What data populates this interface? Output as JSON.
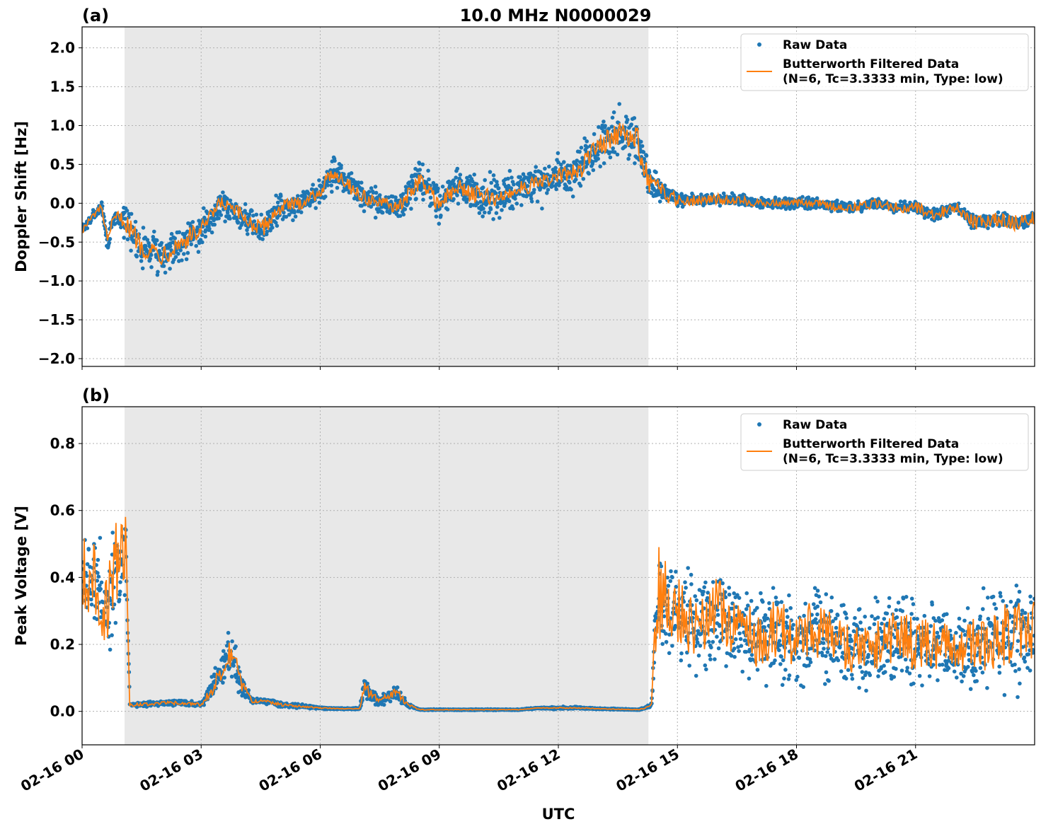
{
  "figure": {
    "title": "10.0 MHz N0000029",
    "xlabel": "UTC",
    "x_tick_labels": [
      "02-16 00",
      "02-16 03",
      "02-16 06",
      "02-16 09",
      "02-16 12",
      "02-16 15",
      "02-16 18",
      "02-16 21"
    ]
  },
  "colors": {
    "raw": "#1f77b4",
    "filtered": "#ff7f0e",
    "shade": "#e8e8e8"
  },
  "chart_data": [
    {
      "type": "scatter",
      "panel": "(a)",
      "title": "10.0 MHz N0000029",
      "xlabel": "",
      "ylabel": "Doppler Shift [Hz]",
      "xlim_hours": [
        0,
        24
      ],
      "ylim": [
        -2.1,
        2.27
      ],
      "yticks": [
        -2.0,
        -1.5,
        -1.0,
        -0.5,
        0.0,
        0.5,
        1.0,
        1.5,
        2.0
      ],
      "ytick_labels": [
        "−2.0",
        "−1.5",
        "−1.0",
        "−0.5",
        "0.0",
        "0.5",
        "1.0",
        "1.5",
        "2.0"
      ],
      "grid": true,
      "legend_placement": "upper right",
      "shaded_span_hours": [
        1.07,
        14.27
      ],
      "series": [
        {
          "name": "Raw Data",
          "kind": "points",
          "x_hours": [
            0,
            0.3,
            0.5,
            0.65,
            0.75,
            0.9,
            1.1,
            1.5,
            2.0,
            2.5,
            3.0,
            3.5,
            4.0,
            4.5,
            5.0,
            5.5,
            6.0,
            6.3,
            6.5,
            7.0,
            7.5,
            8.0,
            8.5,
            9.0,
            9.5,
            10.0,
            10.5,
            11.0,
            11.5,
            12.0,
            12.5,
            13.0,
            13.5,
            14.0,
            14.3,
            14.6,
            15.0,
            15.5,
            16.0,
            16.5,
            17.0,
            17.5,
            18.0,
            18.5,
            19.0,
            19.5,
            20.0,
            20.5,
            21.0,
            21.5,
            22.0,
            22.5,
            23.0,
            23.5,
            24.0
          ],
          "center": [
            -0.35,
            -0.15,
            -0.05,
            -0.55,
            -0.25,
            -0.15,
            -0.25,
            -0.55,
            -0.65,
            -0.5,
            -0.35,
            0.0,
            -0.15,
            -0.35,
            -0.05,
            0.0,
            0.15,
            0.4,
            0.35,
            0.1,
            0.0,
            -0.05,
            0.3,
            0.0,
            0.2,
            0.1,
            0.05,
            0.2,
            0.25,
            0.35,
            0.4,
            0.75,
            0.9,
            0.8,
            0.25,
            0.15,
            0.05,
            0.05,
            0.05,
            0.05,
            0.0,
            0.0,
            0.0,
            0.0,
            -0.05,
            -0.05,
            0.0,
            -0.05,
            -0.05,
            -0.15,
            -0.05,
            -0.25,
            -0.2,
            -0.25,
            -0.2
          ],
          "spread": [
            0.1,
            0.1,
            0.1,
            0.25,
            0.1,
            0.15,
            0.3,
            0.35,
            0.35,
            0.35,
            0.3,
            0.25,
            0.25,
            0.3,
            0.25,
            0.2,
            0.2,
            0.3,
            0.3,
            0.3,
            0.25,
            0.25,
            0.35,
            0.35,
            0.35,
            0.4,
            0.35,
            0.35,
            0.35,
            0.35,
            0.35,
            0.45,
            0.45,
            0.45,
            0.35,
            0.15,
            0.12,
            0.1,
            0.1,
            0.1,
            0.1,
            0.1,
            0.1,
            0.1,
            0.1,
            0.1,
            0.1,
            0.1,
            0.1,
            0.12,
            0.1,
            0.15,
            0.12,
            0.12,
            0.1
          ]
        },
        {
          "name": "Butterworth Filtered Data\n(N=6, Tc=3.3333 min, Type: low)",
          "legend_lines": [
            "Butterworth Filtered Data",
            "(N=6, Tc=3.3333 min, Type: low)"
          ],
          "kind": "line",
          "x_hours": [
            0,
            0.3,
            0.5,
            0.65,
            0.75,
            0.9,
            1.1,
            1.5,
            2.0,
            2.5,
            3.0,
            3.5,
            4.0,
            4.5,
            5.0,
            5.5,
            6.0,
            6.3,
            6.5,
            7.0,
            7.5,
            8.0,
            8.5,
            9.0,
            9.5,
            10.0,
            10.5,
            11.0,
            11.5,
            12.0,
            12.5,
            13.0,
            13.5,
            14.0,
            14.3,
            14.6,
            15.0,
            15.5,
            16.0,
            16.5,
            17.0,
            17.5,
            18.0,
            18.5,
            19.0,
            19.5,
            20.0,
            20.5,
            21.0,
            21.5,
            22.0,
            22.5,
            23.0,
            23.5,
            24.0
          ],
          "y": [
            -0.35,
            -0.15,
            -0.05,
            -0.55,
            -0.25,
            -0.15,
            -0.25,
            -0.55,
            -0.65,
            -0.5,
            -0.35,
            0.0,
            -0.15,
            -0.35,
            -0.05,
            0.0,
            0.15,
            0.4,
            0.35,
            0.1,
            0.0,
            -0.05,
            0.3,
            0.0,
            0.2,
            0.1,
            0.05,
            0.2,
            0.25,
            0.35,
            0.4,
            0.75,
            0.9,
            0.8,
            0.25,
            0.15,
            0.05,
            0.05,
            0.05,
            0.05,
            0.0,
            0.0,
            0.0,
            0.0,
            -0.05,
            -0.05,
            0.0,
            -0.05,
            -0.05,
            -0.15,
            -0.05,
            -0.25,
            -0.2,
            -0.25,
            -0.2
          ],
          "wiggle": [
            0.05,
            0.05,
            0.05,
            0.1,
            0.05,
            0.05,
            0.12,
            0.15,
            0.15,
            0.15,
            0.12,
            0.1,
            0.1,
            0.12,
            0.1,
            0.08,
            0.08,
            0.1,
            0.1,
            0.1,
            0.08,
            0.08,
            0.12,
            0.12,
            0.12,
            0.12,
            0.1,
            0.1,
            0.1,
            0.1,
            0.12,
            0.15,
            0.15,
            0.18,
            0.15,
            0.12,
            0.1,
            0.08,
            0.07,
            0.06,
            0.05,
            0.05,
            0.05,
            0.05,
            0.06,
            0.06,
            0.06,
            0.07,
            0.07,
            0.08,
            0.07,
            0.1,
            0.1,
            0.1,
            0.1
          ]
        }
      ]
    },
    {
      "type": "scatter",
      "panel": "(b)",
      "title": "",
      "xlabel": "UTC",
      "ylabel": "Peak Voltage [V]",
      "xlim_hours": [
        0,
        24
      ],
      "ylim": [
        -0.1,
        0.91
      ],
      "yticks": [
        0.0,
        0.2,
        0.4,
        0.6,
        0.8
      ],
      "ytick_labels": [
        "0.0",
        "0.2",
        "0.4",
        "0.6",
        "0.8"
      ],
      "grid": true,
      "legend_placement": "upper right",
      "shaded_span_hours": [
        1.07,
        14.27
      ],
      "series": [
        {
          "name": "Raw Data",
          "kind": "points",
          "x_hours": [
            0,
            0.3,
            0.6,
            0.9,
            1.1,
            1.2,
            1.5,
            2.0,
            2.5,
            3.0,
            3.3,
            3.6,
            3.8,
            4.0,
            4.3,
            4.6,
            5.0,
            5.5,
            6.0,
            6.5,
            7.0,
            7.1,
            7.5,
            7.9,
            8.2,
            8.5,
            9.0,
            10.0,
            11.0,
            11.5,
            12.0,
            12.5,
            13.0,
            14.0,
            14.2,
            14.35,
            14.5,
            15.0,
            15.5,
            16.0,
            16.5,
            17.0,
            17.5,
            18.0,
            18.5,
            19.0,
            19.5,
            20.0,
            20.5,
            21.0,
            21.5,
            22.0,
            22.5,
            23.0,
            23.5,
            24.0
          ],
          "center": [
            0.4,
            0.4,
            0.3,
            0.45,
            0.5,
            0.02,
            0.02,
            0.025,
            0.025,
            0.02,
            0.07,
            0.15,
            0.18,
            0.08,
            0.03,
            0.03,
            0.02,
            0.015,
            0.01,
            0.008,
            0.008,
            0.07,
            0.03,
            0.06,
            0.02,
            0.005,
            0.005,
            0.005,
            0.005,
            0.01,
            0.01,
            0.01,
            0.008,
            0.005,
            0.01,
            0.02,
            0.35,
            0.3,
            0.25,
            0.3,
            0.25,
            0.22,
            0.25,
            0.2,
            0.25,
            0.22,
            0.18,
            0.2,
            0.22,
            0.2,
            0.2,
            0.18,
            0.2,
            0.22,
            0.22,
            0.25
          ],
          "spread": [
            0.2,
            0.2,
            0.2,
            0.25,
            0.2,
            0.01,
            0.01,
            0.01,
            0.015,
            0.01,
            0.05,
            0.1,
            0.1,
            0.05,
            0.01,
            0.01,
            0.01,
            0.008,
            0.005,
            0.003,
            0.003,
            0.04,
            0.02,
            0.04,
            0.01,
            0.002,
            0.002,
            0.002,
            0.002,
            0.003,
            0.005,
            0.005,
            0.003,
            0.002,
            0.005,
            0.01,
            0.25,
            0.2,
            0.2,
            0.2,
            0.2,
            0.18,
            0.2,
            0.18,
            0.2,
            0.18,
            0.15,
            0.18,
            0.18,
            0.17,
            0.17,
            0.15,
            0.17,
            0.2,
            0.2,
            0.2
          ]
        },
        {
          "name": "Butterworth Filtered Data\n(N=6, Tc=3.3333 min, Type: low)",
          "legend_lines": [
            "Butterworth Filtered Data",
            "(N=6, Tc=3.3333 min, Type: low)"
          ],
          "kind": "line",
          "x_hours": [
            0,
            0.3,
            0.6,
            0.9,
            1.1,
            1.2,
            1.5,
            2.0,
            2.5,
            3.0,
            3.3,
            3.6,
            3.8,
            4.0,
            4.3,
            4.6,
            5.0,
            5.5,
            6.0,
            6.5,
            7.0,
            7.1,
            7.5,
            7.9,
            8.2,
            8.5,
            9.0,
            10.0,
            11.0,
            11.5,
            12.0,
            12.5,
            13.0,
            14.0,
            14.2,
            14.35,
            14.5,
            15.0,
            15.5,
            16.0,
            16.5,
            17.0,
            17.5,
            18.0,
            18.5,
            19.0,
            19.5,
            20.0,
            20.5,
            21.0,
            21.5,
            22.0,
            22.5,
            23.0,
            23.5,
            24.0
          ],
          "y": [
            0.4,
            0.4,
            0.3,
            0.45,
            0.5,
            0.02,
            0.02,
            0.025,
            0.025,
            0.02,
            0.07,
            0.15,
            0.18,
            0.08,
            0.03,
            0.03,
            0.02,
            0.015,
            0.01,
            0.008,
            0.008,
            0.07,
            0.03,
            0.06,
            0.02,
            0.005,
            0.005,
            0.005,
            0.005,
            0.01,
            0.01,
            0.01,
            0.008,
            0.005,
            0.01,
            0.02,
            0.35,
            0.3,
            0.25,
            0.3,
            0.25,
            0.22,
            0.25,
            0.2,
            0.25,
            0.22,
            0.18,
            0.2,
            0.22,
            0.2,
            0.2,
            0.18,
            0.2,
            0.22,
            0.22,
            0.25
          ],
          "wiggle": [
            0.12,
            0.12,
            0.12,
            0.15,
            0.12,
            0.005,
            0.005,
            0.005,
            0.005,
            0.005,
            0.02,
            0.04,
            0.04,
            0.02,
            0.005,
            0.005,
            0.005,
            0.003,
            0.002,
            0.001,
            0.001,
            0.02,
            0.008,
            0.015,
            0.005,
            0.001,
            0.001,
            0.001,
            0.001,
            0.001,
            0.002,
            0.002,
            0.001,
            0.001,
            0.002,
            0.005,
            0.15,
            0.1,
            0.1,
            0.1,
            0.1,
            0.09,
            0.1,
            0.08,
            0.1,
            0.08,
            0.07,
            0.08,
            0.08,
            0.08,
            0.08,
            0.07,
            0.08,
            0.1,
            0.1,
            0.1
          ]
        }
      ]
    }
  ]
}
